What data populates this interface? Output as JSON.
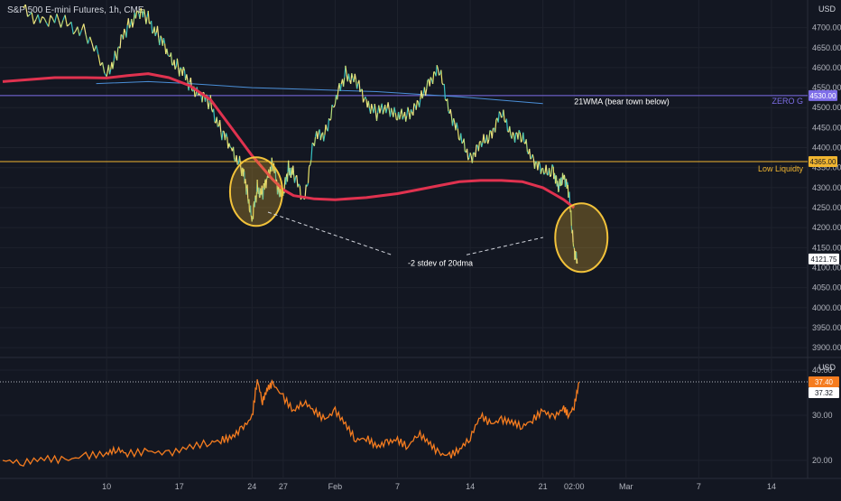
{
  "header": {
    "title": "S&P 500 E-mini Futures, 1h, CME"
  },
  "chart_data": [
    {
      "type": "line",
      "panel": "price",
      "y_axis_title": "USD",
      "ylim": [
        3880,
        4760
      ],
      "y_ticks": [
        4700,
        4650,
        4600,
        4550,
        4500,
        4450,
        4400,
        4350,
        4300,
        4250,
        4200,
        4150,
        4100,
        4050,
        4000,
        3950,
        3900
      ],
      "y_tick_labels": [
        "4700.00",
        "4650.00",
        "4600.00",
        "4550.00",
        "4500.00",
        "4450.00",
        "4400.00",
        "4350.00",
        "4300.00",
        "4250.00",
        "4200.00",
        "4150.00",
        "4100.00",
        "4050.00",
        "4000.00",
        "3950.00",
        "3900.00"
      ],
      "x_ticks": [
        {
          "t": 10,
          "label": "10"
        },
        {
          "t": 17,
          "label": "17"
        },
        {
          "t": 24,
          "label": "24"
        },
        {
          "t": 27,
          "label": "27"
        },
        {
          "t": 32,
          "label": "Feb"
        },
        {
          "t": 38,
          "label": "7"
        },
        {
          "t": 45,
          "label": "14"
        },
        {
          "t": 52,
          "label": "21"
        },
        {
          "t": 55,
          "label": "02:00"
        },
        {
          "t": 60,
          "label": "Mar"
        },
        {
          "t": 67,
          "label": "7"
        },
        {
          "t": 74,
          "label": "14"
        }
      ],
      "price_series": {
        "t": [
          2,
          4,
          6,
          8,
          10,
          11,
          12,
          13,
          14,
          15,
          16,
          17,
          18,
          19,
          20,
          21,
          22,
          23,
          23.5,
          24,
          24.5,
          25,
          25.5,
          26,
          26.5,
          27,
          27.5,
          28,
          29,
          30,
          31,
          32,
          33,
          34,
          35,
          36,
          37,
          38,
          39,
          40,
          41,
          42,
          43,
          44,
          45,
          46,
          47,
          48,
          49,
          50,
          51,
          52,
          53,
          53.5,
          54,
          54.5,
          55,
          55.3
        ],
        "y": [
          4740,
          4720,
          4710,
          4690,
          4580,
          4640,
          4700,
          4740,
          4720,
          4680,
          4630,
          4600,
          4560,
          4530,
          4510,
          4440,
          4400,
          4350,
          4300,
          4215,
          4300,
          4280,
          4330,
          4360,
          4300,
          4280,
          4350,
          4330,
          4270,
          4420,
          4440,
          4510,
          4590,
          4560,
          4520,
          4480,
          4510,
          4470,
          4490,
          4500,
          4570,
          4590,
          4500,
          4420,
          4380,
          4400,
          4440,
          4480,
          4440,
          4420,
          4380,
          4330,
          4350,
          4290,
          4340,
          4280,
          4150,
          4110
        ]
      },
      "ma_series": {
        "name": "",
        "t": [
          0,
          5,
          8,
          10,
          12,
          14,
          16,
          18,
          20,
          22,
          24,
          26,
          27,
          28,
          30,
          32,
          35,
          38,
          40,
          42,
          44,
          46,
          48,
          50,
          52,
          53,
          54,
          55
        ],
        "y": [
          4565,
          4575,
          4575,
          4574,
          4580,
          4585,
          4575,
          4555,
          4520,
          4450,
          4380,
          4320,
          4295,
          4280,
          4272,
          4270,
          4275,
          4285,
          4295,
          4305,
          4315,
          4318,
          4318,
          4315,
          4300,
          4285,
          4270,
          4250
        ]
      },
      "wma21_series": {
        "t": [
          9,
          14,
          18,
          24,
          30,
          36,
          44,
          52
        ],
        "y": [
          4560,
          4565,
          4560,
          4550,
          4545,
          4540,
          4527,
          4510
        ]
      },
      "levels": [
        {
          "value": 4530,
          "label": "ZERO G",
          "price_tag": "4530.00",
          "color": "#7e6ee8"
        },
        {
          "value": 4365,
          "label": "Low Liquidty",
          "price_tag": "4365.00",
          "color": "#f2b630"
        }
      ],
      "last_price": {
        "value": 4121.75,
        "label": "4121.75"
      },
      "annotations": [
        {
          "text": "21WMA (bear town below)",
          "t": 55,
          "y": 4508
        },
        {
          "text": "-2 stdev of 20dma",
          "t": 39,
          "y": 4105
        }
      ],
      "circles": [
        {
          "t": 24.4,
          "y": 4290
        },
        {
          "t": 55.7,
          "y": 4175
        }
      ]
    },
    {
      "type": "line",
      "panel": "indicator",
      "y_axis_title": "USD",
      "ylim": [
        16,
        42
      ],
      "y_ticks": [
        40,
        30,
        20
      ],
      "y_tick_labels": [
        "40.00",
        "30.00",
        "20.00"
      ],
      "series": {
        "t": [
          0,
          2,
          4,
          6,
          8,
          10,
          11,
          12,
          14,
          16,
          18,
          20,
          21,
          22,
          23,
          24,
          24.5,
          25,
          25.5,
          26,
          27,
          28,
          29,
          30,
          31,
          32,
          33,
          34,
          35,
          36,
          37,
          38,
          39,
          40,
          41,
          42,
          43,
          44,
          45,
          46,
          47,
          48,
          49,
          50,
          51,
          52,
          53,
          54,
          54.5,
          55,
          55.5
        ],
        "y": [
          20,
          19.5,
          20.5,
          20,
          21,
          21.5,
          22.5,
          21.5,
          22,
          21.5,
          23,
          24,
          24.5,
          25,
          27,
          29.5,
          38,
          33,
          36,
          37,
          34,
          31,
          33,
          31,
          29,
          31,
          28,
          24.5,
          25,
          23,
          24,
          24.5,
          23,
          26,
          24,
          21.5,
          21,
          22.5,
          25,
          30,
          28,
          29,
          28.5,
          27.5,
          29,
          31,
          29.5,
          31.5,
          30,
          32,
          37.4
        ]
      },
      "last_value": {
        "value": 37.4,
        "label": "37.40"
      },
      "ref_value": {
        "value": 37.32,
        "label": "37.32"
      }
    }
  ]
}
